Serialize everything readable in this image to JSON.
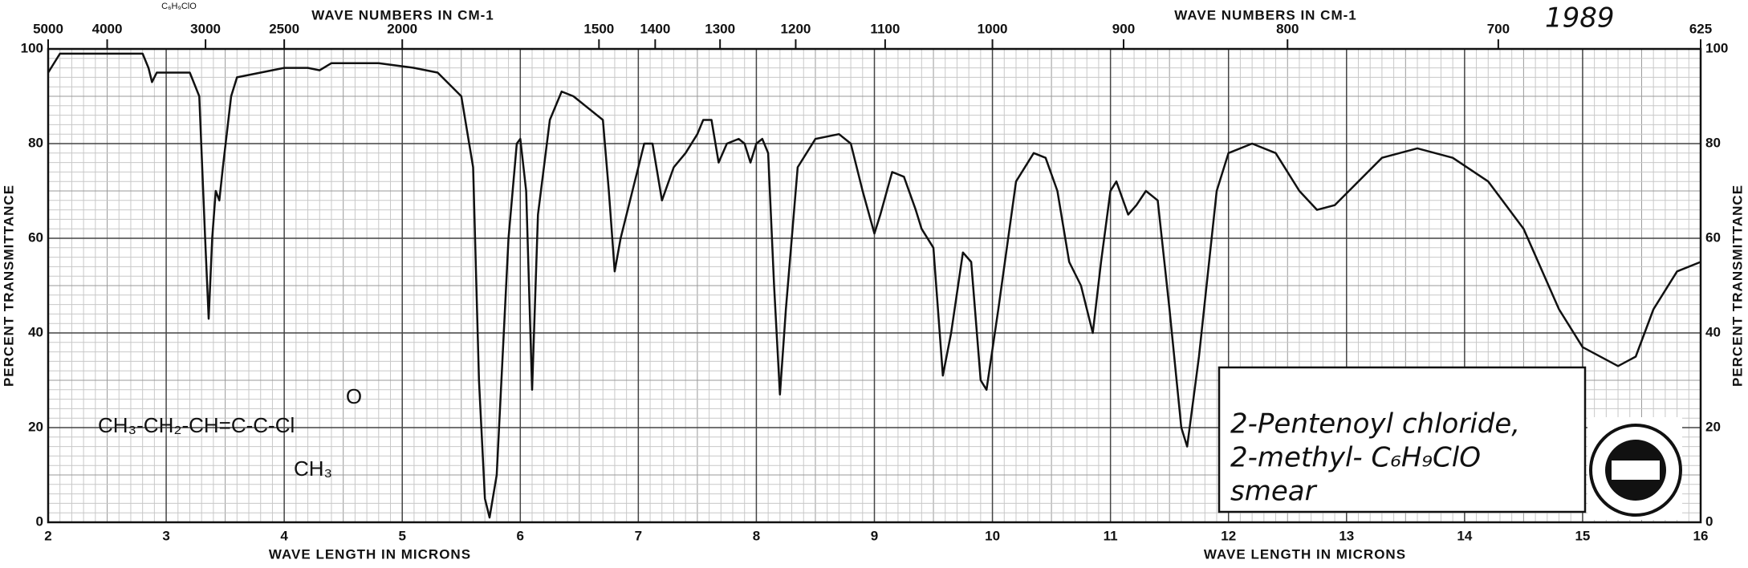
{
  "chart_data": {
    "type": "line",
    "x_label": "WAVE LENGTH IN MICRONS",
    "y_label": "PERCENT TRANSMITTANCE",
    "x2_label": "WAVE NUMBERS IN CM-1",
    "xlim": [
      2,
      16
    ],
    "xticks": [
      2,
      3,
      4,
      5,
      6,
      7,
      8,
      9,
      10,
      11,
      12,
      13,
      14,
      15,
      16
    ],
    "ylim": [
      0,
      100
    ],
    "yticks": [
      0,
      20,
      40,
      60,
      80,
      100
    ],
    "x2ticks": [
      5000,
      4000,
      3000,
      2500,
      2000,
      1500,
      1400,
      1300,
      1200,
      1100,
      1000,
      900,
      800,
      700,
      625
    ],
    "grid": true,
    "annotations": {
      "year": "1989",
      "top_formula": "C₆H₉ClO",
      "structure": "CH₃-CH₂-CH=C-C-Cl",
      "structure_branch": "CH₃",
      "structure_oxygen": "O",
      "name_line1": "2-Pentenoyl chloride,",
      "name_line2": "2-methyl- C₆H₉ClO",
      "name_line3": "smear"
    },
    "series": [
      {
        "color": "#111111",
        "x": [
          2.0,
          2.1,
          2.5,
          2.8,
          2.85,
          2.88,
          2.92,
          3.0,
          3.2,
          3.28,
          3.33,
          3.36,
          3.39,
          3.42,
          3.45,
          3.48,
          3.55,
          3.6,
          3.8,
          4.0,
          4.2,
          4.3,
          4.4,
          4.8,
          5.1,
          5.3,
          5.5,
          5.6,
          5.65,
          5.7,
          5.74,
          5.8,
          5.9,
          5.97,
          6.0,
          6.05,
          6.1,
          6.15,
          6.25,
          6.35,
          6.45,
          6.55,
          6.7,
          6.75,
          6.8,
          6.85,
          6.95,
          7.05,
          7.12,
          7.2,
          7.3,
          7.4,
          7.5,
          7.55,
          7.62,
          7.68,
          7.75,
          7.85,
          7.9,
          7.95,
          8.0,
          8.05,
          8.1,
          8.15,
          8.2,
          8.25,
          8.35,
          8.5,
          8.7,
          8.8,
          8.9,
          9.0,
          9.05,
          9.15,
          9.25,
          9.35,
          9.4,
          9.5,
          9.58,
          9.65,
          9.75,
          9.82,
          9.9,
          9.95,
          10.05,
          10.2,
          10.35,
          10.45,
          10.55,
          10.65,
          10.75,
          10.85,
          10.92,
          11.0,
          11.05,
          11.15,
          11.22,
          11.3,
          11.4,
          11.5,
          11.6,
          11.65,
          11.75,
          11.9,
          12.0,
          12.2,
          12.4,
          12.6,
          12.75,
          12.9,
          13.1,
          13.3,
          13.6,
          13.9,
          14.2,
          14.5,
          14.8,
          15.0,
          15.3,
          15.45,
          15.6,
          15.8,
          16.0
        ],
        "values": [
          95,
          99,
          99,
          99,
          96,
          93,
          95,
          95,
          95,
          90,
          60,
          43,
          60,
          70,
          68,
          75,
          90,
          94,
          95,
          96,
          96,
          95.5,
          97,
          97,
          96,
          95,
          90,
          75,
          30,
          5,
          1,
          10,
          60,
          80,
          81,
          70,
          28,
          65,
          85,
          91,
          90,
          88,
          85,
          70,
          53,
          60,
          70,
          80,
          80,
          68,
          75,
          78,
          82,
          85,
          85,
          76,
          80,
          81,
          80,
          76,
          80,
          81,
          78,
          50,
          27,
          45,
          75,
          81,
          82,
          80,
          70,
          61,
          65,
          74,
          73,
          66,
          62,
          58,
          31,
          40,
          57,
          55,
          30,
          28,
          45,
          72,
          78,
          77,
          70,
          55,
          50,
          40,
          55,
          70,
          72,
          65,
          67,
          70,
          68,
          45,
          20,
          16,
          35,
          70,
          78,
          80,
          78,
          70,
          66,
          67,
          72,
          77,
          79,
          77,
          72,
          62,
          45,
          37,
          33,
          35,
          45,
          53,
          55
        ]
      }
    ]
  }
}
